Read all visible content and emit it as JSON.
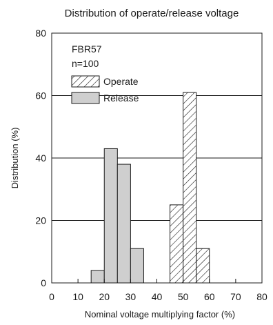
{
  "chart_data": {
    "type": "bar",
    "title": "Distribution of operate/release voltage",
    "xlabel": "Nominal voltage multiplying factor (%)",
    "ylabel": "Distribution (%)",
    "xlim": [
      0,
      80
    ],
    "ylim": [
      0,
      80
    ],
    "x_ticks": [
      0,
      10,
      20,
      30,
      40,
      50,
      60,
      70,
      80
    ],
    "y_ticks": [
      0,
      20,
      40,
      60,
      80
    ],
    "grid": "horizontal",
    "legend_position": "top-left",
    "annotations": [
      "FBR57",
      "n=100"
    ],
    "bin_width": 5,
    "series": [
      {
        "name": "Operate",
        "style": "hatched",
        "bins": [
          {
            "x0": 45,
            "x1": 50,
            "value": 25
          },
          {
            "x0": 50,
            "x1": 55,
            "value": 61
          },
          {
            "x0": 55,
            "x1": 60,
            "value": 11
          }
        ]
      },
      {
        "name": "Release",
        "style": "solid",
        "bins": [
          {
            "x0": 15,
            "x1": 20,
            "value": 4
          },
          {
            "x0": 20,
            "x1": 25,
            "value": 43
          },
          {
            "x0": 25,
            "x1": 30,
            "value": 38
          },
          {
            "x0": 30,
            "x1": 35,
            "value": 11
          }
        ]
      }
    ]
  },
  "colors": {
    "release_fill": "#cfcfcf",
    "stroke": "#1a1a1a",
    "grid": "#1a1a1a"
  }
}
